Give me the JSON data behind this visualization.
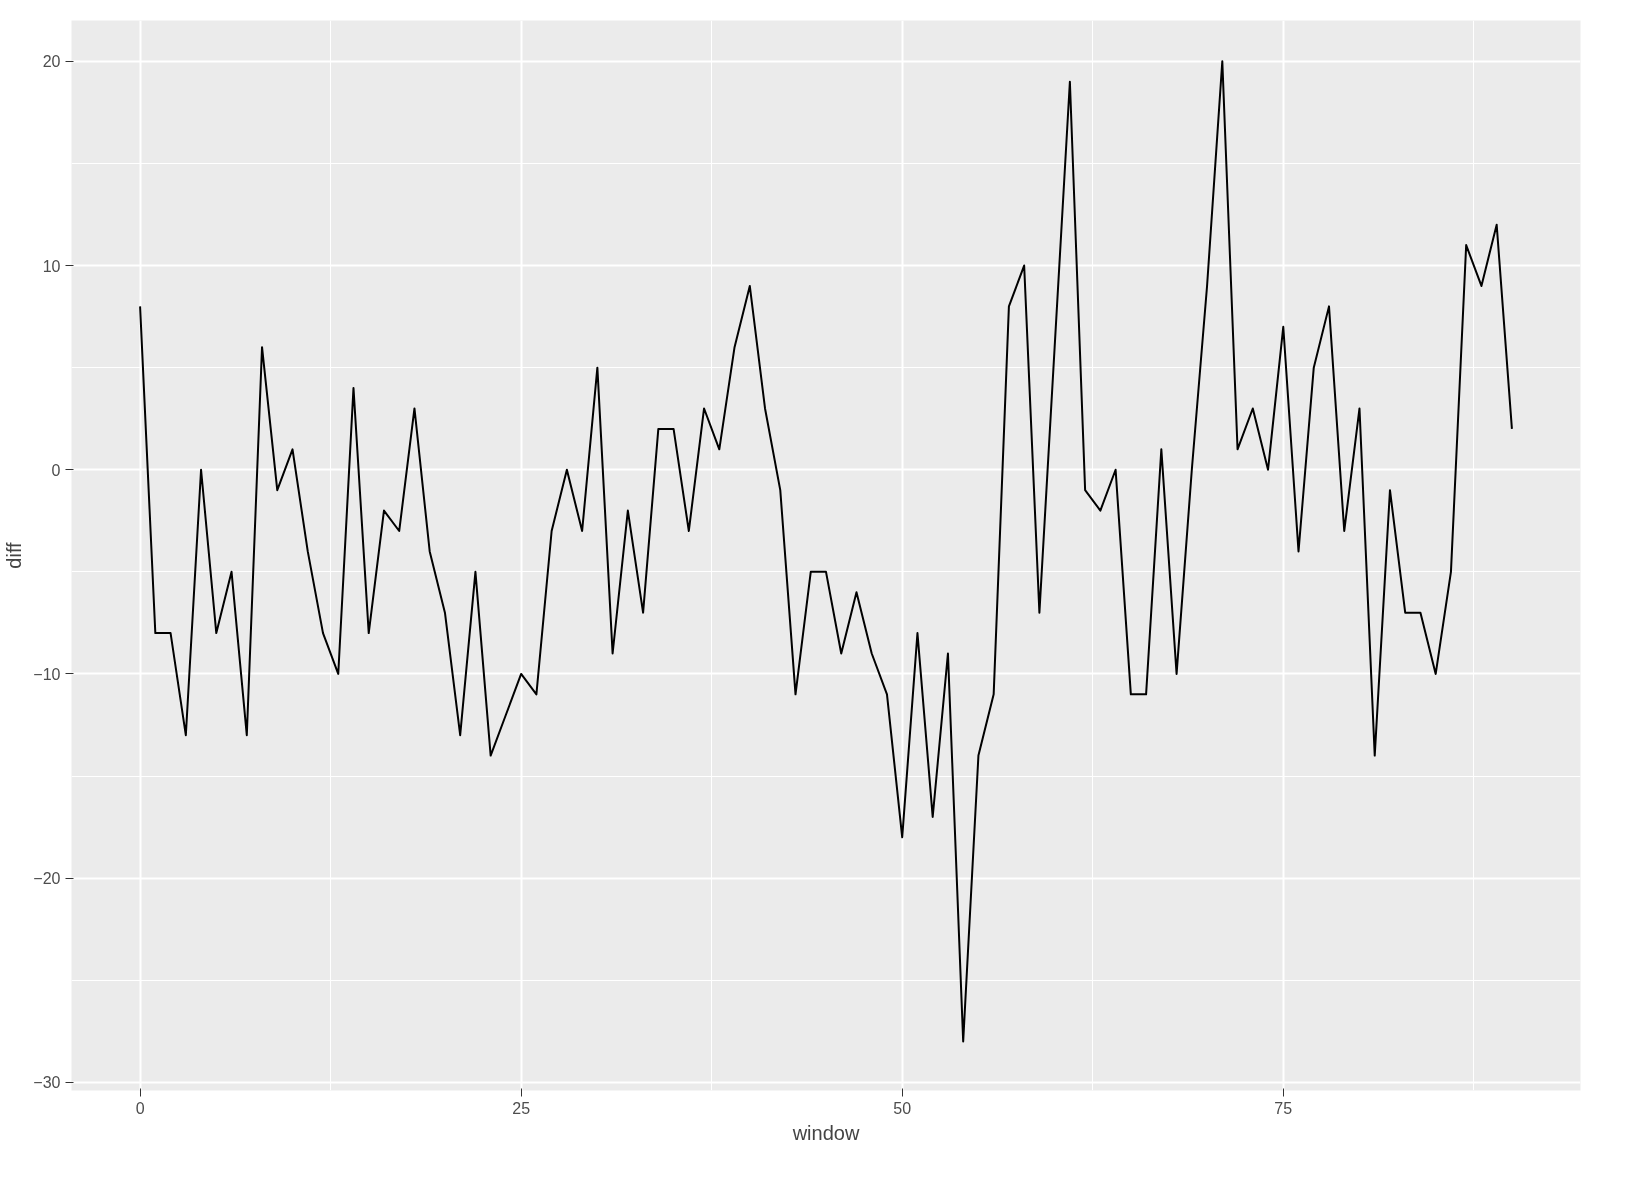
{
  "chart_data": {
    "type": "line",
    "xlabel": "window",
    "ylabel": "diff",
    "x": [
      0,
      1,
      2,
      3,
      4,
      5,
      6,
      7,
      8,
      9,
      10,
      11,
      12,
      13,
      14,
      15,
      16,
      17,
      18,
      19,
      20,
      21,
      22,
      23,
      24,
      25,
      26,
      27,
      28,
      29,
      30,
      31,
      32,
      33,
      34,
      35,
      36,
      37,
      38,
      39,
      40,
      41,
      42,
      43,
      44,
      45,
      46,
      47,
      48,
      49,
      50,
      51,
      52,
      53,
      54,
      55,
      56,
      57,
      58,
      59,
      60,
      61,
      62,
      63,
      64,
      65,
      66,
      67,
      68,
      69,
      70,
      71,
      72,
      73,
      74,
      75,
      76,
      77,
      78,
      79,
      80,
      81,
      82,
      83,
      84,
      85,
      86,
      87,
      88,
      89,
      90
    ],
    "series": [
      {
        "color": "#000000",
        "values": [
          8,
          -8,
          -8,
          -13,
          0,
          -8,
          -5,
          -13,
          6,
          -1,
          1,
          -4,
          -8,
          -10,
          4,
          -8,
          -2,
          -3,
          3,
          -4,
          -7,
          -13,
          -5,
          -14,
          -12,
          -10,
          -11,
          -3,
          0,
          -3,
          5,
          -9,
          -2,
          -7,
          2,
          2,
          -3,
          3,
          1,
          6,
          9,
          3,
          -1,
          -11,
          -5,
          -5,
          -9,
          -6,
          -9,
          -11,
          -18,
          -8,
          -17,
          -9,
          -28,
          -14,
          -11,
          8,
          10,
          -7,
          6,
          19,
          -1,
          -2,
          0,
          -11,
          -11,
          1,
          -10,
          0,
          9,
          20,
          1,
          3,
          0,
          7,
          -4,
          5,
          8,
          -3,
          3,
          -14,
          -1,
          -7,
          -7,
          -10,
          -5,
          11,
          9,
          12,
          2
        ]
      }
    ],
    "xlim": [
      -4.5,
      94.5
    ],
    "ylim": [
      -30.4,
      22
    ],
    "xticks": [
      0,
      25,
      50,
      75
    ],
    "yticks": [
      -30,
      -20,
      -10,
      0,
      10,
      20
    ],
    "grid": true
  }
}
